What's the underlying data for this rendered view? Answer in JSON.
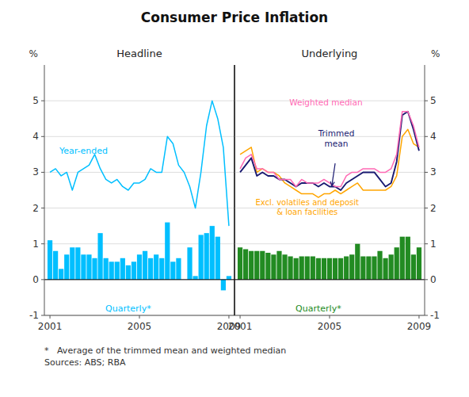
{
  "title": "Consumer Price Inflation",
  "footnote": "*   Average of the trimmed mean and weighted median\nSources: ABS; RBA",
  "chart_data": [
    {
      "type": "bar",
      "title": "Headline",
      "y_label": "%",
      "x": [
        2001.0,
        2001.25,
        2001.5,
        2001.75,
        2002.0,
        2002.25,
        2002.5,
        2002.75,
        2003.0,
        2003.25,
        2003.5,
        2003.75,
        2004.0,
        2004.25,
        2004.5,
        2004.75,
        2005.0,
        2005.25,
        2005.5,
        2005.75,
        2006.0,
        2006.25,
        2006.5,
        2006.75,
        2007.0,
        2007.25,
        2007.5,
        2007.75,
        2008.0,
        2008.25,
        2008.5,
        2008.75,
        2009.0
      ],
      "xlim": [
        2000.75,
        2009.25
      ],
      "xticks": [
        2001,
        2005,
        2009
      ],
      "ylim": [
        -1,
        6
      ],
      "yticks": [
        -1,
        0,
        1,
        2,
        3,
        4,
        5
      ],
      "grid": true,
      "series": [
        {
          "name": "Quarterly*",
          "type": "bar",
          "color": "#00BFFF",
          "values": [
            1.1,
            0.8,
            0.3,
            0.7,
            0.9,
            0.9,
            0.7,
            0.7,
            0.6,
            1.3,
            0.6,
            0.5,
            0.5,
            0.6,
            0.4,
            0.5,
            0.7,
            0.8,
            0.6,
            0.7,
            0.6,
            1.6,
            0.5,
            0.6,
            0.0,
            0.9,
            0.1,
            1.25,
            1.3,
            1.5,
            1.2,
            -0.3,
            0.1
          ]
        },
        {
          "name": "Year-ended",
          "type": "line",
          "color": "#00BFFF",
          "values": [
            3.0,
            3.1,
            2.9,
            3.0,
            2.5,
            3.0,
            3.1,
            3.2,
            3.5,
            3.1,
            2.8,
            2.7,
            2.8,
            2.6,
            2.5,
            2.7,
            2.7,
            2.8,
            3.1,
            3.0,
            3.0,
            4.0,
            3.8,
            3.2,
            3.0,
            2.6,
            2.0,
            3.0,
            4.3,
            5.0,
            4.5,
            3.7,
            1.5
          ]
        }
      ]
    },
    {
      "type": "bar",
      "title": "Underlying",
      "y_label": "%",
      "x": [
        2001.0,
        2001.25,
        2001.5,
        2001.75,
        2002.0,
        2002.25,
        2002.5,
        2002.75,
        2003.0,
        2003.25,
        2003.5,
        2003.75,
        2004.0,
        2004.25,
        2004.5,
        2004.75,
        2005.0,
        2005.25,
        2005.5,
        2005.75,
        2006.0,
        2006.25,
        2006.5,
        2006.75,
        2007.0,
        2007.25,
        2007.5,
        2007.75,
        2008.0,
        2008.25,
        2008.5,
        2008.75,
        2009.0
      ],
      "xlim": [
        2000.75,
        2009.25
      ],
      "xticks": [
        2001,
        2005,
        2009
      ],
      "ylim": [
        -1,
        6
      ],
      "yticks": [
        -1,
        0,
        1,
        2,
        3,
        4,
        5
      ],
      "grid": true,
      "series": [
        {
          "name": "Quarterly*",
          "type": "bar",
          "color": "#228B22",
          "values": [
            0.9,
            0.85,
            0.8,
            0.8,
            0.8,
            0.75,
            0.7,
            0.8,
            0.7,
            0.65,
            0.6,
            0.65,
            0.65,
            0.65,
            0.6,
            0.6,
            0.6,
            0.6,
            0.6,
            0.65,
            0.7,
            1.0,
            0.65,
            0.65,
            0.65,
            0.8,
            0.6,
            0.7,
            0.9,
            1.2,
            1.2,
            0.7,
            0.9
          ]
        },
        {
          "name": "Excl. volatiles and deposit\n& loan facilities",
          "type": "line",
          "color": "#FFA500",
          "values": [
            3.5,
            3.6,
            3.7,
            3.0,
            3.1,
            3.0,
            3.0,
            2.9,
            2.7,
            2.6,
            2.5,
            2.4,
            2.4,
            2.4,
            2.3,
            2.4,
            2.4,
            2.5,
            2.4,
            2.5,
            2.6,
            2.7,
            2.5,
            2.5,
            2.5,
            2.5,
            2.5,
            2.6,
            2.9,
            4.0,
            4.2,
            3.8,
            3.7
          ]
        },
        {
          "name": "Trimmed\nmean",
          "type": "line",
          "color": "#191970",
          "values": [
            3.0,
            3.2,
            3.4,
            2.9,
            3.0,
            2.9,
            2.9,
            2.8,
            2.8,
            2.7,
            2.6,
            2.7,
            2.7,
            2.7,
            2.6,
            2.7,
            2.6,
            2.6,
            2.5,
            2.7,
            2.8,
            2.9,
            3.0,
            3.0,
            3.0,
            2.8,
            2.6,
            2.7,
            3.3,
            4.6,
            4.7,
            4.2,
            3.6
          ]
        },
        {
          "name": "Weighted median",
          "type": "line",
          "color": "#FF69B4",
          "values": [
            3.1,
            3.4,
            3.5,
            3.1,
            3.1,
            3.0,
            3.0,
            2.8,
            2.8,
            2.8,
            2.6,
            2.8,
            2.7,
            2.7,
            2.7,
            2.8,
            2.7,
            2.6,
            2.6,
            2.9,
            3.0,
            3.0,
            3.1,
            3.1,
            3.1,
            3.0,
            3.0,
            3.1,
            3.5,
            4.7,
            4.7,
            4.3,
            3.7
          ]
        }
      ]
    }
  ]
}
